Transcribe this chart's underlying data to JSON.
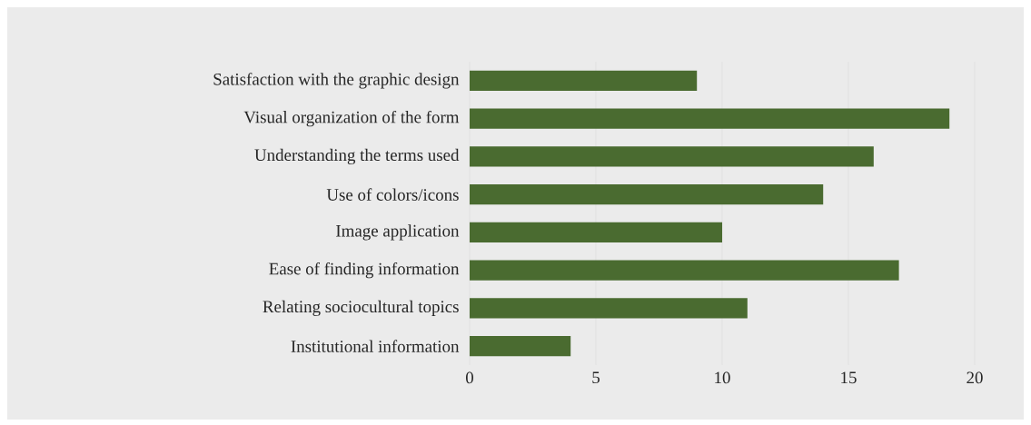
{
  "chart_data": {
    "type": "bar",
    "orientation": "horizontal",
    "categories": [
      "Satisfaction with the graphic design",
      "Visual organization of the form",
      "Understanding the terms used",
      "Use of colors/icons",
      "Image application",
      "Ease of finding information",
      "Relating sociocultural topics",
      "Institutional information"
    ],
    "values": [
      9,
      19,
      16,
      14,
      10,
      17,
      11,
      4
    ],
    "color": "#4a6b30",
    "xlim": [
      0,
      20
    ],
    "xticks": [
      0,
      5,
      10,
      15,
      20
    ],
    "grid": "x"
  }
}
